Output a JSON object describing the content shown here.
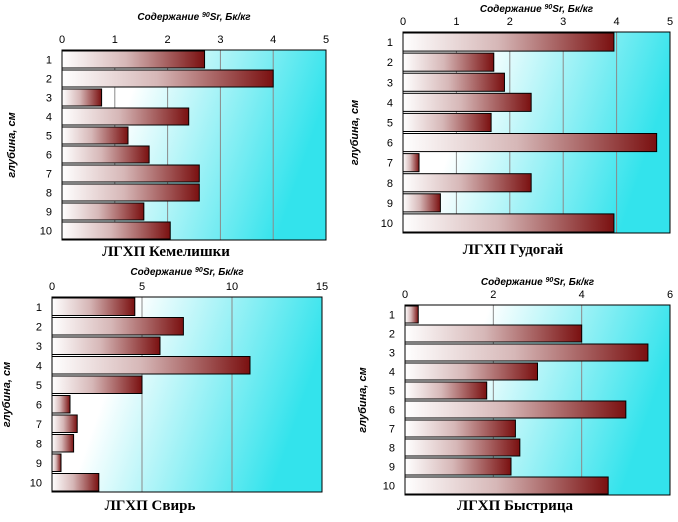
{
  "chart_data": [
    {
      "type": "bar",
      "orientation": "horizontal",
      "title": "ЛГХП Кемелишки",
      "xlabel": "Содержание 90Sr, Бк/кг",
      "ylabel": "глубина, см",
      "xlim": [
        0,
        5
      ],
      "xticks": [
        "0",
        "1",
        "2",
        "3",
        "4",
        "5"
      ],
      "categories": [
        "1",
        "2",
        "3",
        "4",
        "5",
        "6",
        "7",
        "8",
        "9",
        "10"
      ],
      "values": [
        2.7,
        4.0,
        0.75,
        2.4,
        1.25,
        1.65,
        2.6,
        2.6,
        1.55,
        2.05
      ],
      "grid": "vertical",
      "colors": {
        "bar_light": "#ffffff",
        "bar_dark": "#7a1010",
        "bg_light": "#ffffff",
        "bg_cyan": "#33e3ec"
      }
    },
    {
      "type": "bar",
      "orientation": "horizontal",
      "title": "ЛГХП Гудогай",
      "xlabel": "Содержание 90Sr, Бк/кг",
      "ylabel": "глубина, см",
      "xlim": [
        0,
        5
      ],
      "xticks": [
        "0",
        "1",
        "2",
        "3",
        "4",
        "5"
      ],
      "categories": [
        "1",
        "2",
        "3",
        "4",
        "5",
        "6",
        "7",
        "8",
        "9",
        "10"
      ],
      "values": [
        3.95,
        1.7,
        1.9,
        2.4,
        1.65,
        4.75,
        0.3,
        2.4,
        0.7,
        3.95
      ],
      "grid": "vertical",
      "colors": {
        "bar_light": "#ffffff",
        "bar_dark": "#7a1010",
        "bg_light": "#ffffff",
        "bg_cyan": "#33e3ec"
      }
    },
    {
      "type": "bar",
      "orientation": "horizontal",
      "title": "ЛГХП Свирь",
      "xlabel": "Содержание 90Sr, Бк/кг",
      "ylabel": "глубина, см",
      "xlim": [
        0,
        15
      ],
      "xticks": [
        "0",
        "5",
        "10",
        "15"
      ],
      "categories": [
        "1",
        "2",
        "3",
        "4",
        "5",
        "6",
        "7",
        "8",
        "9",
        "10"
      ],
      "values": [
        4.6,
        7.3,
        6.0,
        11.0,
        5.0,
        1.0,
        1.4,
        1.2,
        0.5,
        2.6
      ],
      "grid": "vertical",
      "colors": {
        "bar_light": "#ffffff",
        "bar_dark": "#7a1010",
        "bg_light": "#ffffff",
        "bg_cyan": "#33e3ec"
      }
    },
    {
      "type": "bar",
      "orientation": "horizontal",
      "title": "ЛГХП Быстрица",
      "xlabel": "Содержание 90Sr, Бк/кг",
      "ylabel": "глубина, см",
      "xlim": [
        0,
        6
      ],
      "xticks": [
        "0",
        "2",
        "4",
        "6"
      ],
      "categories": [
        "1",
        "2",
        "3",
        "4",
        "5",
        "6",
        "7",
        "8",
        "9",
        "10"
      ],
      "values": [
        0.3,
        4.0,
        5.5,
        3.0,
        1.85,
        5.0,
        2.5,
        2.6,
        2.4,
        4.6
      ],
      "grid": "vertical",
      "colors": {
        "bar_light": "#ffffff",
        "bar_dark": "#7a1010",
        "bg_light": "#ffffff",
        "bg_cyan": "#33e3ec"
      }
    }
  ]
}
